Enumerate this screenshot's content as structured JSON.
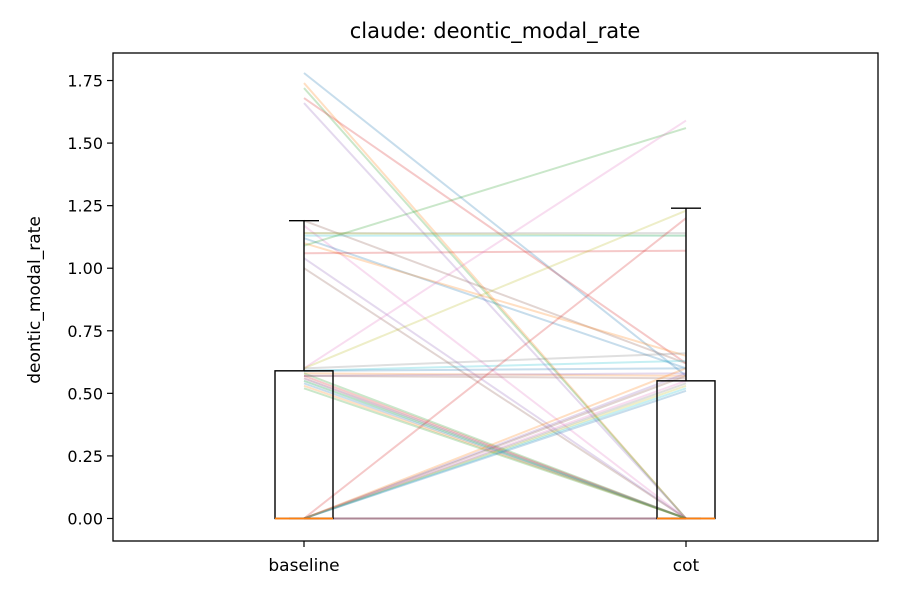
{
  "chart_data": {
    "type": "box-and-paired-lines",
    "title": "claude: deontic_modal_rate",
    "xlabel": "",
    "ylabel": "deontic_modal_rate",
    "categories": [
      "baseline",
      "cot"
    ],
    "ylim": [
      -0.09,
      1.86
    ],
    "yticks": [
      0.0,
      0.25,
      0.5,
      0.75,
      1.0,
      1.25,
      1.5,
      1.75
    ],
    "ytick_labels": [
      "0.00",
      "0.25",
      "0.50",
      "0.75",
      "1.00",
      "1.25",
      "1.50",
      "1.75"
    ],
    "grid": false,
    "legend": "none",
    "boxes": [
      {
        "category": "baseline",
        "q1": 0.0,
        "median": 0.0,
        "q3": 0.59,
        "whisker_low": 0.0,
        "whisker_high": 1.19
      },
      {
        "category": "cot",
        "q1": 0.0,
        "median": 0.0,
        "q3": 0.55,
        "whisker_low": 0.0,
        "whisker_high": 1.24
      }
    ],
    "box_color": "#000000",
    "median_color": "#ff7f0e",
    "palette": [
      "#1f77b4",
      "#ff7f0e",
      "#2ca02c",
      "#d62728",
      "#9467bd",
      "#8c564b",
      "#e377c2",
      "#7f7f7f",
      "#bcbd22",
      "#17becf"
    ],
    "pairs": [
      [
        1.78,
        0.57
      ],
      [
        1.74,
        0.0
      ],
      [
        1.72,
        0.0
      ],
      [
        1.68,
        0.62
      ],
      [
        1.66,
        0.0
      ],
      [
        1.19,
        0.62
      ],
      [
        1.17,
        0.0
      ],
      [
        1.14,
        1.14
      ],
      [
        1.14,
        1.13
      ],
      [
        1.13,
        1.13
      ],
      [
        1.12,
        0.6
      ],
      [
        1.1,
        0.65
      ],
      [
        1.09,
        1.56
      ],
      [
        1.06,
        1.07
      ],
      [
        1.04,
        0.0
      ],
      [
        1.0,
        0.0
      ],
      [
        0.6,
        1.59
      ],
      [
        0.6,
        0.66
      ],
      [
        0.6,
        1.23
      ],
      [
        0.59,
        0.63
      ],
      [
        0.59,
        0.6
      ],
      [
        0.58,
        0.57
      ],
      [
        0.58,
        0.0
      ],
      [
        0.57,
        0.0
      ],
      [
        0.57,
        0.58
      ],
      [
        0.57,
        0.56
      ],
      [
        0.56,
        0.0
      ],
      [
        0.56,
        0.0
      ],
      [
        0.55,
        0.0
      ],
      [
        0.55,
        0.0
      ],
      [
        0.54,
        0.0
      ],
      [
        0.53,
        0.0
      ],
      [
        0.52,
        0.0
      ],
      [
        0.0,
        1.2
      ],
      [
        0.0,
        0.58
      ],
      [
        0.0,
        0.57
      ],
      [
        0.0,
        0.55
      ],
      [
        0.0,
        0.54
      ],
      [
        0.0,
        0.53
      ],
      [
        0.0,
        0.52
      ],
      [
        0.0,
        0.51
      ],
      [
        0.0,
        0.6
      ],
      [
        0.0,
        0.0
      ],
      [
        0.0,
        0.0
      ],
      [
        0.0,
        0.0
      ],
      [
        0.0,
        0.0
      ],
      [
        0.0,
        0.0
      ],
      [
        0.0,
        0.0
      ]
    ]
  }
}
